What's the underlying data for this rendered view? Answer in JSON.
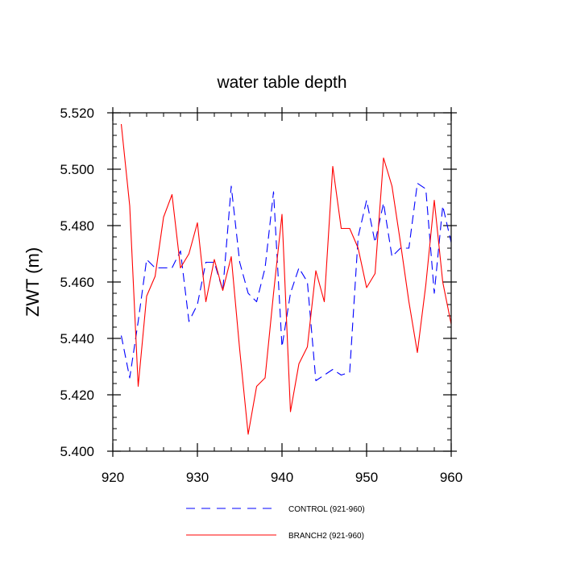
{
  "chart_data": {
    "type": "line",
    "title": "water table depth",
    "xlabel": "",
    "ylabel": "ZWT  (m)",
    "xlim": [
      920,
      960
    ],
    "ylim": [
      5.4,
      5.52
    ],
    "xticks": [
      920,
      930,
      940,
      950,
      960
    ],
    "yticks": [
      5.4,
      5.42,
      5.44,
      5.46,
      5.48,
      5.5,
      5.52
    ],
    "ytick_labels": [
      "5.400",
      "5.420",
      "5.440",
      "5.460",
      "5.480",
      "5.500",
      "5.520"
    ],
    "grid": false,
    "legend_position": "bottom",
    "series": [
      {
        "name": "CONTROL (921-960)",
        "color": "#0000ff",
        "dash": "dashed",
        "x": [
          921,
          922,
          923,
          924,
          925,
          926,
          927,
          928,
          929,
          930,
          931,
          932,
          933,
          934,
          935,
          936,
          937,
          938,
          939,
          940,
          941,
          942,
          943,
          944,
          945,
          946,
          947,
          948,
          949,
          950,
          951,
          952,
          953,
          954,
          955,
          956,
          957,
          958,
          959,
          960
        ],
        "y": [
          5.441,
          5.426,
          5.446,
          5.468,
          5.465,
          5.465,
          5.465,
          5.471,
          5.446,
          5.452,
          5.467,
          5.467,
          5.457,
          5.494,
          5.467,
          5.456,
          5.453,
          5.465,
          5.492,
          5.437,
          5.456,
          5.465,
          5.46,
          5.425,
          5.427,
          5.429,
          5.427,
          5.428,
          5.476,
          5.489,
          5.474,
          5.488,
          5.469,
          5.472,
          5.472,
          5.495,
          5.493,
          5.456,
          5.487,
          5.474
        ]
      },
      {
        "name": "BRANCH2 (921-960)",
        "color": "#ff0000",
        "dash": "solid",
        "x": [
          921,
          922,
          923,
          924,
          925,
          926,
          927,
          928,
          929,
          930,
          931,
          932,
          933,
          934,
          935,
          936,
          937,
          938,
          939,
          940,
          941,
          942,
          943,
          944,
          945,
          946,
          947,
          948,
          949,
          950,
          951,
          952,
          953,
          954,
          955,
          956,
          957,
          958,
          959,
          960
        ],
        "y": [
          5.516,
          5.487,
          5.423,
          5.455,
          5.462,
          5.483,
          5.491,
          5.465,
          5.47,
          5.481,
          5.453,
          5.468,
          5.457,
          5.469,
          5.436,
          5.406,
          5.423,
          5.426,
          5.456,
          5.484,
          5.414,
          5.431,
          5.437,
          5.464,
          5.453,
          5.501,
          5.479,
          5.479,
          5.472,
          5.458,
          5.463,
          5.504,
          5.494,
          5.474,
          5.453,
          5.435,
          5.459,
          5.489,
          5.46,
          5.445
        ]
      }
    ]
  }
}
